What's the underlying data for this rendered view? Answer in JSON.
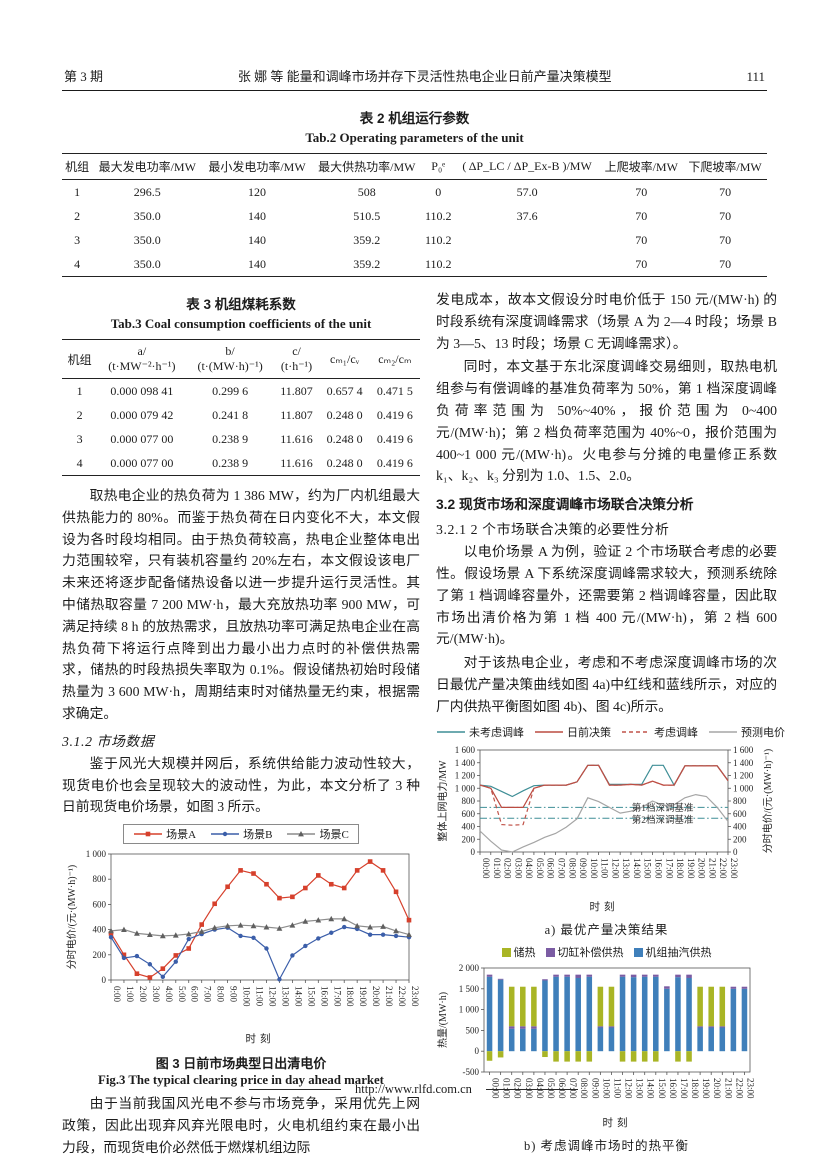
{
  "header": {
    "issue": "第 3 期",
    "running_title": "张  娜 等  能量和调峰市场并存下灵活性热电企业日前产量决策模型",
    "page_number": "111"
  },
  "table2": {
    "title_cn": "表 2  机组运行参数",
    "title_en": "Tab.2 Operating parameters of the unit",
    "headers": [
      "机组",
      "最大发电功率/MW",
      "最小发电功率/MW",
      "最大供热功率/MW",
      "P₀ᵉ",
      "( ΔP_LC / ΔP_Ex-B )/MW",
      "上爬坡率/MW",
      "下爬坡率/MW"
    ],
    "rows": [
      [
        "1",
        "296.5",
        "120",
        "508",
        "0",
        "57.0",
        "70",
        "70"
      ],
      [
        "2",
        "350.0",
        "140",
        "510.5",
        "110.2",
        "37.6",
        "70",
        "70"
      ],
      [
        "3",
        "350.0",
        "140",
        "359.2",
        "110.2",
        "",
        "70",
        "70"
      ],
      [
        "4",
        "350.0",
        "140",
        "359.2",
        "110.2",
        "",
        "70",
        "70"
      ]
    ]
  },
  "table3": {
    "title_cn": "表 3  机组煤耗系数",
    "title_en": "Tab.3 Coal consumption coefficients of the unit",
    "headers": [
      "机组",
      "a/\n(t·MW⁻²·h⁻¹)",
      "b/\n(t·(MW·h)⁻¹)",
      "c/\n(t·h⁻¹)",
      "cₘ₁/cᵥ",
      "cₘ₂/cₘ"
    ],
    "rows": [
      [
        "1",
        "0.000 098 41",
        "0.299 6",
        "11.807",
        "0.657 4",
        "0.471 5"
      ],
      [
        "2",
        "0.000 079 42",
        "0.241 8",
        "11.807",
        "0.248 0",
        "0.419 6"
      ],
      [
        "3",
        "0.000 077 00",
        "0.238 9",
        "11.616",
        "0.248 0",
        "0.419 6"
      ],
      [
        "4",
        "0.000 077 00",
        "0.238 9",
        "11.616",
        "0.248 0",
        "0.419 6"
      ]
    ]
  },
  "left": {
    "para1": "取热电企业的热负荷为 1 386 MW，约为厂内机组最大供热能力的 80%。而鉴于热负荷在日内变化不大，本文假设为各时段均相同。由于热负荷较高，热电企业整体电出力范围较窄，只有装机容量约 20%左右，本文假设该电厂未来还将逐步配备储热设备以进一步提升运行灵活性。其中储热取容量 7 200 MW·h，最大充放热功率 900 MW，可满足持续 8 h 的放热需求，且放热功率可满足热电企业在高热负荷下将运行点降到出力最小出力点时的补偿供热需求，储热的时段热损失率取为 0.1%。假设储热初始时段储热量为 3 600 MW·h，周期结束时对储热量无约束，根据需求确定。",
    "heading_312": "3.1.2 市场数据",
    "para2": "鉴于风光大规模并网后，系统供给能力波动性较大，现货电价也会呈现较大的波动性，为此，本文分析了 3 种日前现货电价场景，如图 3 所示。",
    "para3": "由于当前我国风光电不参与市场竞争，采用优先上网政策，因此出现弃风弃光限电时，火电机组约束在最小出力段，而现货电价必然低于燃煤机组边际"
  },
  "right": {
    "para1": "发电成本，故本文假设分时电价低于 150 元/(MW·h) 的时段系统有深度调峰需求（场景 A 为 2—4 时段；场景 B 为 3—5、13 时段；场景 C 无调峰需求）。",
    "para2": "同时，本文基于东北深度调峰交易细则，取热电机组参与有偿调峰的基准负荷率为 50%，第 1 档深度调峰负荷率范围为 50%~40%，报价范围为 0~400 元/(MW·h)；第 2 档负荷率范围为 40%~0，报价范围为 400~1 000 元/(MW·h)。火电参与分摊的电量修正系数 k₁、k₂、k₃ 分别为 1.0、1.5、2.0。",
    "heading_32": "3.2 现货市场和深度调峰市场联合决策分析",
    "heading_321": "3.2.1  2 个市场联合决策的必要性分析",
    "para3": "以电价场景 A 为例，验证 2 个市场联合考虑的必要性。假设场景 A 下系统深度调峰需求较大，预测系统除了第 1 档调峰容量外，还需要第 2 档调峰容量，因此取市场出清价格为第 1 档 400 元/(MW·h)，第 2 档 600 元/(MW·h)。",
    "para4": "对于该热电企业，考虑和不考虑深度调峰市场的次日最优产量决策曲线如图 4a)中红线和蓝线所示，对应的厂内供热平衡图如图 4b)、图 4c)所示。"
  },
  "fig3": {
    "caption_cn": "图 3  日前市场典型日出清电价",
    "caption_en": "Fig.3 The typical clearing price in day ahead market"
  },
  "fig4": {
    "caption_a": "a) 最优产量决策结果",
    "caption_b": "b) 考虑调峰市场时的热平衡"
  },
  "footer": {
    "url": "http://www.rlfd.com.cn"
  },
  "chart_data": [
    {
      "id": "fig3",
      "type": "line",
      "title": "日前市场典型日出清电价",
      "xlabel": "时刻",
      "ylabel": "分时电价/(元·(MW·h)⁻¹)",
      "ylim": [
        0,
        1000
      ],
      "ystep": 200,
      "grid": false,
      "legend_position": "top-boxed",
      "categories": [
        "0:00",
        "1:00",
        "2:00",
        "3:00",
        "4:00",
        "5:00",
        "6:00",
        "7:00",
        "8:00",
        "9:00",
        "10:00",
        "11:00",
        "12:00",
        "13:00",
        "14:00",
        "15:00",
        "16:00",
        "17:00",
        "18:00",
        "19:00",
        "20:00",
        "21:00",
        "22:00",
        "23:00"
      ],
      "series": [
        {
          "name": "场景A",
          "color": "#d6402c",
          "marker": "square",
          "dash": "",
          "values": [
            370,
            200,
            50,
            20,
            90,
            195,
            250,
            440,
            605,
            740,
            870,
            845,
            760,
            650,
            660,
            730,
            830,
            760,
            730,
            870,
            940,
            870,
            700,
            475
          ]
        },
        {
          "name": "场景B",
          "color": "#3b5ea9",
          "marker": "circle",
          "dash": "",
          "values": [
            340,
            175,
            190,
            125,
            25,
            145,
            325,
            365,
            400,
            415,
            350,
            335,
            250,
            5,
            195,
            270,
            330,
            375,
            420,
            405,
            360,
            360,
            350,
            340
          ]
        },
        {
          "name": "场景C",
          "color": "#8c8c8c",
          "marker": "triangle",
          "marker_color": "#5f5f5f",
          "dash": "",
          "values": [
            390,
            400,
            370,
            360,
            350,
            355,
            365,
            385,
            415,
            430,
            435,
            430,
            420,
            410,
            435,
            465,
            475,
            485,
            485,
            430,
            420,
            425,
            390,
            360
          ]
        }
      ]
    },
    {
      "id": "fig4a",
      "type": "line",
      "title": "最优产量决策结果",
      "xlabel": "时刻",
      "ylabel": "整体上网电力/MW",
      "ylabel_right": "分时电价/(元·(MW·h)⁻¹)",
      "ylim": [
        0,
        1600
      ],
      "ystep": 200,
      "right_axis": true,
      "grid": false,
      "legend_position": "top",
      "categories": [
        "00:00",
        "01:00",
        "02:00",
        "03:00",
        "04:00",
        "05:00",
        "06:00",
        "07:00",
        "08:00",
        "09:00",
        "10:00",
        "11:00",
        "12:00",
        "13:00",
        "14:00",
        "15:00",
        "16:00",
        "17:00",
        "18:00",
        "19:00",
        "20:00",
        "21:00",
        "22:00",
        "23:00"
      ],
      "series": [
        {
          "name": "未考虑调峰",
          "color": "#3e8e96",
          "marker": "none",
          "dash": "",
          "values": [
            1050,
            1030,
            950,
            870,
            960,
            1040,
            1050,
            1050,
            1050,
            1100,
            1360,
            1360,
            1060,
            1060,
            1060,
            1060,
            1360,
            1360,
            1050,
            1350,
            1350,
            1350,
            1350,
            1120
          ]
        },
        {
          "name": "日前决策",
          "color": "#bb4b41",
          "marker": "none",
          "dash": "",
          "values": [
            1050,
            1000,
            700,
            700,
            700,
            1000,
            1050,
            1050,
            1050,
            1100,
            1360,
            1360,
            1050,
            1050,
            1060,
            1050,
            1110,
            1050,
            1050,
            1350,
            1350,
            1350,
            1350,
            1120
          ]
        },
        {
          "name": "考虑调峰",
          "color": "#c05248",
          "marker": "none",
          "dash": "4,3",
          "values": [
            1050,
            1000,
            430,
            420,
            430,
            1000,
            1050,
            1050,
            1050,
            1100,
            1360,
            1360,
            1050,
            1050,
            1060,
            1050,
            1110,
            1050,
            1050,
            1350,
            1350,
            1350,
            1350,
            1120
          ]
        },
        {
          "name": "预测电价",
          "color": "#a5a5a5",
          "marker": "none",
          "dash": "",
          "values": [
            330,
            170,
            30,
            0,
            80,
            150,
            230,
            290,
            390,
            520,
            850,
            790,
            700,
            610,
            640,
            700,
            800,
            730,
            740,
            850,
            900,
            870,
            700,
            480
          ]
        }
      ],
      "hlines": [
        {
          "y": 700,
          "label": "第1档深调基准",
          "color": "#3e8e96",
          "style": "dashdot"
        },
        {
          "y": 530,
          "label": "第2档深调基准",
          "color": "#3e8e96",
          "style": "dashdot"
        }
      ],
      "annotations": [
        {
          "text": "第1档深调基准",
          "x_index": 19.8,
          "y": 640
        },
        {
          "text": "第2档深调基准",
          "x_index": 19.8,
          "y": 452
        }
      ]
    },
    {
      "id": "fig4b",
      "type": "bar",
      "stacked": true,
      "title": "考虑调峰市场时的热平衡",
      "xlabel": "时刻",
      "ylabel": "热量/(MW·h)",
      "ylim": [
        -500,
        2000
      ],
      "ystep": 500,
      "grid": false,
      "legend_position": "top",
      "categories": [
        "00:00",
        "01:00",
        "02:00",
        "03:00",
        "04:00",
        "05:00",
        "06:00",
        "07:00",
        "08:00",
        "09:00",
        "10:00",
        "11:00",
        "12:00",
        "13:00",
        "14:00",
        "15:00",
        "16:00",
        "17:00",
        "18:00",
        "19:00",
        "20:00",
        "21:00",
        "22:00",
        "23:00"
      ],
      "series": [
        {
          "name": "储热",
          "color": "#a9b525",
          "values": [
            0,
            0,
            950,
            950,
            950,
            0,
            0,
            0,
            0,
            0,
            950,
            950,
            0,
            0,
            0,
            0,
            0,
            0,
            0,
            950,
            950,
            950,
            0,
            0
          ],
          "values_negative": [
            -230,
            -150,
            0,
            0,
            0,
            -140,
            -250,
            -250,
            -250,
            -250,
            0,
            0,
            -250,
            -250,
            -250,
            -250,
            0,
            -250,
            -250,
            0,
            0,
            0,
            0,
            0
          ]
        },
        {
          "name": "切缸补偿供热",
          "color": "#7b5ca3",
          "values": [
            50,
            20,
            60,
            60,
            60,
            30,
            50,
            50,
            80,
            50,
            30,
            30,
            50,
            60,
            50,
            50,
            60,
            60,
            80,
            30,
            30,
            30,
            50,
            50
          ]
        },
        {
          "name": "机组抽汽供热",
          "color": "#3f7fba",
          "values": [
            1790,
            1720,
            540,
            540,
            540,
            1700,
            1790,
            1790,
            1760,
            1790,
            570,
            570,
            1790,
            1780,
            1790,
            1790,
            1500,
            1780,
            1760,
            570,
            570,
            570,
            1500,
            1500
          ]
        }
      ],
      "stack_order_bottom_to_top": [
        "机组抽汽供热",
        "切缸补偿供热",
        "储热"
      ]
    }
  ]
}
